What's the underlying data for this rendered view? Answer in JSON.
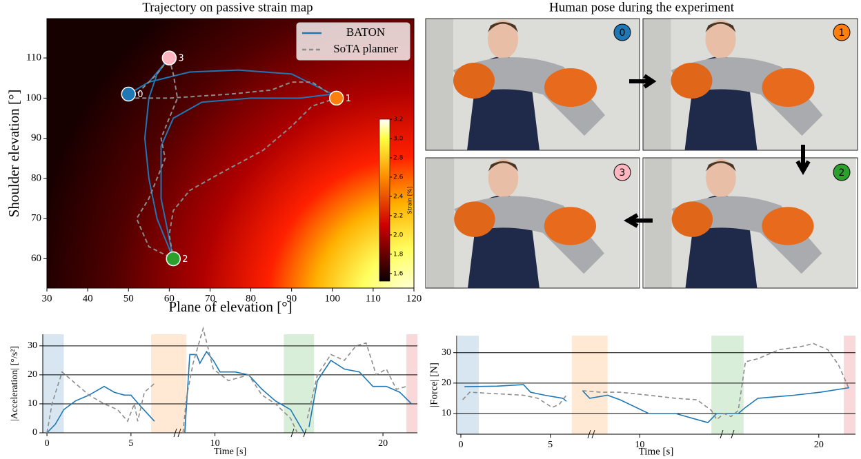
{
  "chart_data": [
    {
      "type": "line",
      "title": "Trajectory on passive strain map",
      "xlabel": "Plane of elevation [°]",
      "ylabel": "Shoulder elevation [°]",
      "xlim": [
        30,
        120
      ],
      "ylim": [
        52.7,
        119.8
      ],
      "xticks": [
        30,
        40,
        50,
        60,
        70,
        80,
        90,
        100,
        110,
        120
      ],
      "yticks": [
        60,
        70,
        80,
        90,
        100,
        110
      ],
      "colormap": "hot",
      "frame": true,
      "legend": "upper right",
      "colorbar": {
        "label": "Strain [%]",
        "clim": [
          1.52,
          3.2
        ],
        "ticks": [
          1.6,
          1.8,
          {
            "value": 2,
            "label": "2.0"
          },
          2.2,
          2.4,
          2.6,
          2.8,
          {
            "value": 3,
            "label": "3.0"
          },
          3.2
        ]
      },
      "series": [
        {
          "name": "BATON",
          "color": "#1f77b4",
          "linestyle": "solid",
          "x": [
            50,
            55,
            65,
            77,
            90,
            100,
            92,
            80,
            68,
            61,
            58,
            58,
            61,
            57,
            55,
            54,
            55,
            57,
            60,
            55,
            50
          ],
          "values": [
            101,
            104,
            106.5,
            107,
            106,
            101,
            100,
            100,
            99,
            95,
            88,
            75,
            60,
            70,
            80,
            90,
            100,
            106,
            110,
            104,
            101
          ]
        },
        {
          "name": "SoTA planner",
          "color": "#8c8c8c",
          "linestyle": "dashed",
          "x": [
            50,
            60,
            75,
            85,
            90,
            95,
            101,
            95,
            90,
            83,
            72,
            65,
            61,
            60,
            61,
            55,
            52,
            55,
            59,
            58,
            60,
            62,
            61,
            60,
            57,
            52,
            50
          ],
          "values": [
            100,
            100,
            101,
            102,
            104,
            104,
            100,
            98,
            93,
            87,
            81,
            77,
            72,
            66,
            60,
            63,
            70,
            75,
            85,
            90,
            95,
            100,
            106,
            110,
            106,
            101,
            100
          ]
        }
      ],
      "markers": [
        {
          "label": "0",
          "x": 50,
          "y": 101,
          "color": "#1f77b4"
        },
        {
          "label": "1",
          "x": 101,
          "y": 100,
          "color": "#ff7f0e"
        },
        {
          "label": "2",
          "x": 61,
          "y": 60,
          "color": "#2ca02c"
        },
        {
          "label": "3",
          "x": 60,
          "y": 110,
          "color": "#ffb6c1"
        }
      ]
    },
    {
      "type": "line",
      "xlabel": "Time [s]",
      "ylabel": "|Acceleration| [°/s²]",
      "xlim": [
        -0.25,
        22.05
      ],
      "ylim": [
        0,
        34
      ],
      "xticks": [
        0,
        5,
        10,
        20
      ],
      "yticks": [
        0,
        10,
        20,
        30
      ],
      "grid": "y",
      "spans": [
        {
          "start": -0.25,
          "end": 1.0,
          "color": "#1f77b4"
        },
        {
          "start": 6.2,
          "end": 8.3,
          "color": "#ff7f0e"
        },
        {
          "start": 14.1,
          "end": 15.9,
          "color": "#2ca02c"
        },
        {
          "start": 21.4,
          "end": 22.05,
          "color": "#d62728"
        }
      ],
      "series": [
        {
          "color": "#1f77b4",
          "linestyle": "solid",
          "x": [
            0,
            0.5,
            1.0,
            1.7,
            2.5,
            3.4,
            4.0,
            4.6,
            5.0,
            5.6,
            6.4,
            null,
            8.2,
            8.5,
            8.9,
            9.1,
            9.5,
            9.9,
            10.3,
            11.2,
            12.0,
            12.8,
            13.6,
            14.5,
            14.9,
            15.3,
            null,
            15.6,
            16.1,
            16.9,
            17.7,
            18.6,
            19.4,
            20.2,
            21.0,
            21.7
          ],
          "values": [
            0,
            3,
            8,
            11,
            13,
            16,
            14,
            13,
            13,
            9,
            4,
            null,
            0,
            27,
            27,
            24,
            28,
            25,
            21,
            21,
            20,
            15,
            11,
            8,
            4,
            0,
            null,
            2,
            18,
            25,
            22,
            21,
            16,
            16,
            14,
            10
          ]
        },
        {
          "color": "#8c8c8c",
          "linestyle": "dashed",
          "x": [
            0,
            0.3,
            0.9,
            1.7,
            2.5,
            3.4,
            4.2,
            4.8,
            5.2,
            5.4,
            5.8,
            6.4,
            null,
            8.1,
            8.3,
            8.7,
            9.3,
            9.9,
            10.8,
            12.0,
            12.8,
            13.6,
            14.5,
            14.9,
            null,
            15.5,
            16.1,
            16.9,
            17.7,
            18.4,
            19.0,
            19.6,
            20.2,
            20.8,
            21.4
          ],
          "values": [
            0,
            10,
            21,
            17,
            13,
            10,
            8,
            4,
            10,
            4,
            14,
            17,
            null,
            0,
            12,
            24,
            36,
            22,
            18,
            20,
            13,
            10,
            5,
            0,
            null,
            5,
            20,
            27,
            25,
            30,
            31,
            20,
            22,
            15,
            16
          ]
        }
      ]
    },
    {
      "type": "line",
      "xlabel": "Time [s]",
      "ylabel": "|Force| [N]",
      "xlim": [
        -0.23,
        22.05
      ],
      "ylim": [
        3.2,
        35.6
      ],
      "xticks": [
        0,
        5,
        10,
        20
      ],
      "yticks": [
        10,
        20,
        30
      ],
      "grid": "y",
      "spans": [
        {
          "start": -0.15,
          "end": 1.0,
          "color": "#1f77b4"
        },
        {
          "start": 6.2,
          "end": 8.2,
          "color": "#ff7f0e"
        },
        {
          "start": 14.0,
          "end": 15.8,
          "color": "#2ca02c"
        },
        {
          "start": 21.4,
          "end": 22.05,
          "color": "#d62728"
        }
      ],
      "series": [
        {
          "color": "#1f77b4",
          "linestyle": "solid",
          "x": [
            0.2,
            2.0,
            3.5,
            3.9,
            4.7,
            5.7,
            5.9,
            null,
            6.8,
            7.2,
            8.2,
            8.9,
            10.5,
            12.0,
            13.2,
            13.8,
            14.3,
            15.5,
            15.9,
            16.6,
            18.6,
            20.1,
            21.7
          ],
          "values": [
            18.8,
            19,
            19.5,
            17,
            16,
            15,
            14,
            null,
            17.5,
            15,
            16,
            14.5,
            10,
            10,
            8,
            7,
            10,
            10,
            12,
            15,
            16,
            17,
            18.5
          ]
        },
        {
          "color": "#8c8c8c",
          "linestyle": "dashed",
          "x": [
            0.1,
            0.5,
            2.0,
            3.5,
            4.3,
            5.1,
            5.5,
            5.9,
            null,
            6.8,
            7.8,
            8.9,
            10.5,
            12.0,
            13.2,
            14.0,
            14.3,
            14.7,
            15.1,
            15.5,
            15.9,
            16.6,
            17.8,
            19.0,
            19.7,
            20.5,
            21.1,
            21.7
          ],
          "values": [
            14.5,
            17,
            16.5,
            16,
            15,
            12,
            13,
            16,
            null,
            17.5,
            17,
            17,
            16,
            15,
            14.5,
            11,
            8,
            10,
            9,
            11,
            27,
            28,
            31,
            32,
            33,
            31,
            26,
            18
          ]
        }
      ]
    }
  ],
  "photos": {
    "title": "Human pose during the experiment",
    "frames": [
      {
        "label": "0"
      },
      {
        "label": "1"
      },
      {
        "label": "3"
      },
      {
        "label": "2"
      }
    ]
  }
}
